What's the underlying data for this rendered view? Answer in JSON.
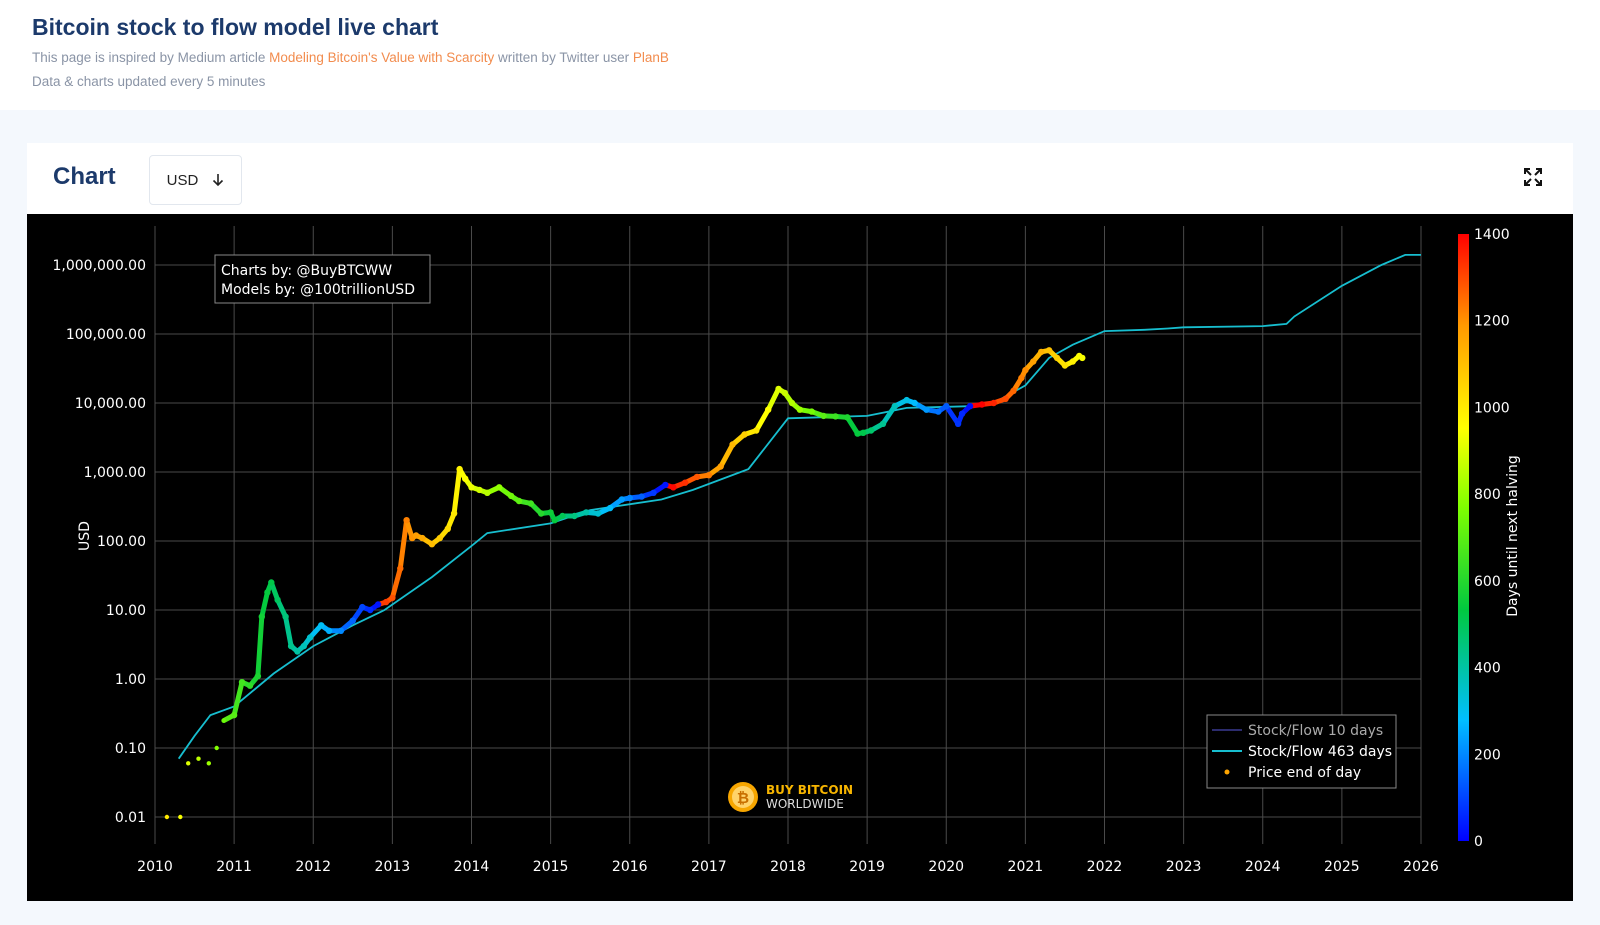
{
  "page": {
    "title": "Bitcoin stock to flow model live chart",
    "intro_prefix": "This page is inspired by Medium article ",
    "article_link": "Modeling Bitcoin's Value with Scarcity",
    "intro_middle": " written by Twitter user ",
    "author_link": "PlanB",
    "update_note": "Data & charts updated every 5 minutes"
  },
  "card": {
    "title": "Chart",
    "currency": "USD",
    "expand_icon": "expand-icon"
  },
  "colors": {
    "title": "#1c3a6b",
    "link": "#f28c4e",
    "sf463": "#17becf",
    "sf10": "#2c2c6e",
    "price_marker": "#ffa500"
  },
  "chart_data": {
    "type": "scatter",
    "y_scale": "log",
    "ylabel": "USD",
    "xlim": [
      2010,
      2026
    ],
    "ylim": [
      0.01,
      1000000
    ],
    "x_ticks": [
      "2010",
      "2011",
      "2012",
      "2013",
      "2014",
      "2015",
      "2016",
      "2017",
      "2018",
      "2019",
      "2020",
      "2021",
      "2022",
      "2023",
      "2024",
      "2025",
      "2026"
    ],
    "y_ticks": [
      "0.01",
      "0.10",
      "1.00",
      "10.00",
      "100.00",
      "1,000.00",
      "10,000.00",
      "100,000.00",
      "1,000,000.00"
    ],
    "grid": true,
    "annotation": [
      "Charts by: @BuyBTCWW",
      "Models by: @100trillionUSD"
    ],
    "legend": [
      "Stock/Flow 10 days",
      "Stock/Flow 463 days",
      "Price end of day"
    ],
    "legend_position": "bottom-right",
    "colorbar": {
      "title": "Days until next halving",
      "ticks": [
        "0",
        "200",
        "400",
        "600",
        "800",
        "1000",
        "1200",
        "1400"
      ],
      "range": [
        0,
        1400
      ]
    },
    "logo": [
      "BUY BITCOIN",
      "WORLDWIDE"
    ],
    "series": [
      {
        "name": "Stock/Flow 463 days",
        "x": [
          2010.3,
          2010.5,
          2010.7,
          2011.0,
          2011.5,
          2012.0,
          2012.5,
          2012.9,
          2013.5,
          2014.0,
          2014.2,
          2015.0,
          2015.5,
          2016.4,
          2016.8,
          2017.5,
          2018.0,
          2019.0,
          2019.5,
          2020.3,
          2020.6,
          2021.0,
          2021.3,
          2021.6,
          2022.0,
          2022.5,
          2022.8,
          2023.0,
          2024.0,
          2024.3,
          2024.4,
          2025.0,
          2025.5,
          2025.8,
          2026.0
        ],
        "y": [
          0.07,
          0.15,
          0.3,
          0.4,
          1.2,
          3,
          6,
          10,
          30,
          85,
          130,
          180,
          280,
          400,
          550,
          1100,
          6000,
          6500,
          8500,
          9000,
          10000,
          18000,
          45000,
          70000,
          110000,
          115000,
          120000,
          125000,
          130000,
          140000,
          180000,
          500000,
          1000000,
          1400000,
          1400000
        ]
      },
      {
        "name": "Price end of day",
        "x": [
          2010.15,
          2010.32,
          2010.42,
          2010.55,
          2010.68,
          2010.78,
          2010.87,
          2011.0,
          2011.1,
          2011.2,
          2011.3,
          2011.35,
          2011.42,
          2011.47,
          2011.55,
          2011.65,
          2011.72,
          2011.8,
          2011.88,
          2011.96,
          2012.1,
          2012.2,
          2012.35,
          2012.5,
          2012.62,
          2012.72,
          2012.82,
          2012.92,
          2013.0,
          2013.1,
          2013.18,
          2013.25,
          2013.3,
          2013.38,
          2013.5,
          2013.6,
          2013.7,
          2013.78,
          2013.85,
          2013.92,
          2014.0,
          2014.1,
          2014.2,
          2014.35,
          2014.5,
          2014.6,
          2014.75,
          2014.88,
          2015.0,
          2015.05,
          2015.15,
          2015.3,
          2015.45,
          2015.6,
          2015.75,
          2015.9,
          2016.0,
          2016.15,
          2016.3,
          2016.45,
          2016.55,
          2016.7,
          2016.85,
          2017.0,
          2017.15,
          2017.3,
          2017.45,
          2017.6,
          2017.75,
          2017.88,
          2017.96,
          2018.05,
          2018.15,
          2018.3,
          2018.45,
          2018.6,
          2018.75,
          2018.88,
          2018.95,
          2019.05,
          2019.2,
          2019.35,
          2019.5,
          2019.6,
          2019.75,
          2019.9,
          2020.0,
          2020.15,
          2020.2,
          2020.3,
          2020.45,
          2020.6,
          2020.75,
          2020.85,
          2020.95,
          2021.0,
          2021.1,
          2021.2,
          2021.3,
          2021.4,
          2021.5,
          2021.6,
          2021.68,
          2021.72
        ],
        "y": [
          0.01,
          0.01,
          0.06,
          0.07,
          0.06,
          0.1,
          0.25,
          0.3,
          0.9,
          0.8,
          1.1,
          8,
          18,
          25,
          14,
          8,
          3,
          2.5,
          3,
          4,
          6,
          5,
          5,
          7,
          11,
          10,
          12,
          13,
          15,
          40,
          200,
          110,
          120,
          110,
          90,
          110,
          150,
          250,
          1100,
          800,
          600,
          550,
          500,
          600,
          450,
          380,
          350,
          250,
          260,
          200,
          230,
          230,
          260,
          250,
          300,
          400,
          420,
          440,
          500,
          650,
          600,
          700,
          850,
          900,
          1200,
          2500,
          3500,
          4000,
          8000,
          16000,
          14000,
          10000,
          8000,
          7500,
          6500,
          6400,
          6200,
          3600,
          3700,
          4000,
          5000,
          9000,
          11000,
          10000,
          8000,
          7500,
          9000,
          5000,
          7000,
          9000,
          9500,
          10000,
          11500,
          15000,
          23000,
          30000,
          40000,
          55000,
          58000,
          45000,
          35000,
          40000,
          48000,
          45000
        ]
      }
    ]
  }
}
